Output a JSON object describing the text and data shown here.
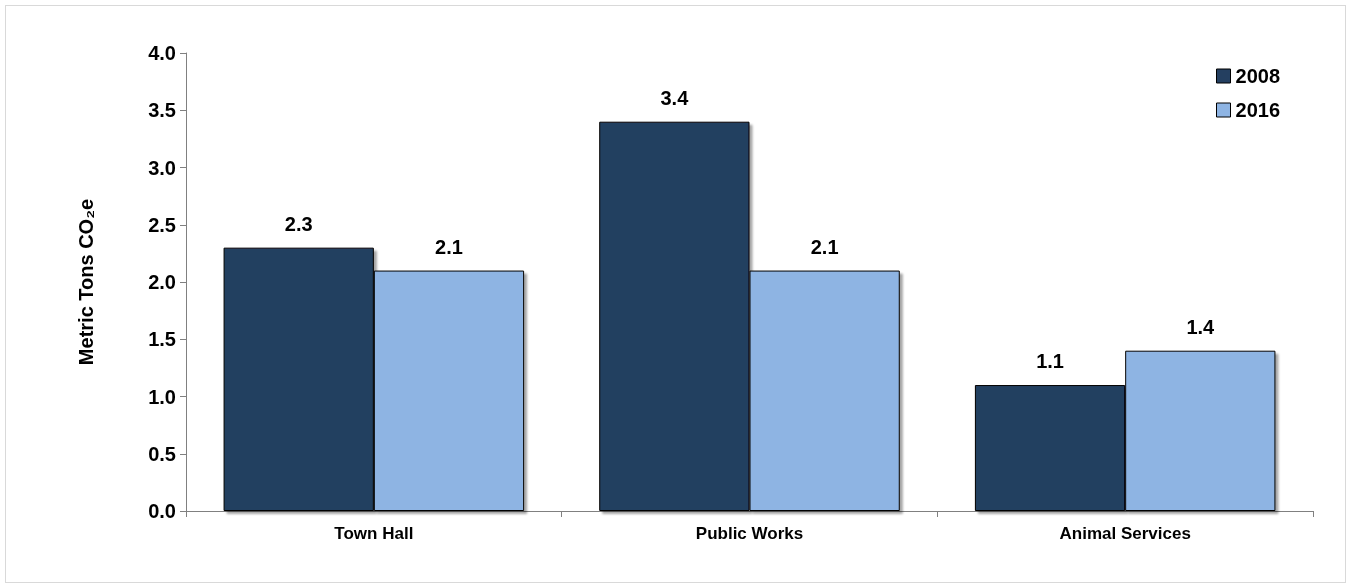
{
  "chart_data": {
    "type": "bar",
    "ylabel": "Metric Tons CO₂e",
    "categories": [
      "Town Hall",
      "Public Works",
      "Animal Services"
    ],
    "series": [
      {
        "name": "2008",
        "color": "#243f60",
        "values": [
          2.3,
          3.4,
          1.1
        ]
      },
      {
        "name": "2016",
        "color": "#8eb4e3",
        "values": [
          2.1,
          2.1,
          1.4
        ]
      }
    ],
    "ylim": [
      0,
      4
    ],
    "yticks": [
      {
        "value": 0,
        "label": "0.0"
      },
      {
        "value": 0.5,
        "label": "0.5"
      },
      {
        "value": 1,
        "label": "1.0"
      },
      {
        "value": 1.5,
        "label": "1.5"
      },
      {
        "value": 2,
        "label": "2.0"
      },
      {
        "value": 2.5,
        "label": "2.5"
      },
      {
        "value": 3,
        "label": "3.0"
      },
      {
        "value": 3.5,
        "label": "3.5"
      },
      {
        "value": 4,
        "label": "4.0"
      }
    ],
    "data_labels": true,
    "grid": false,
    "legend": "top right"
  }
}
